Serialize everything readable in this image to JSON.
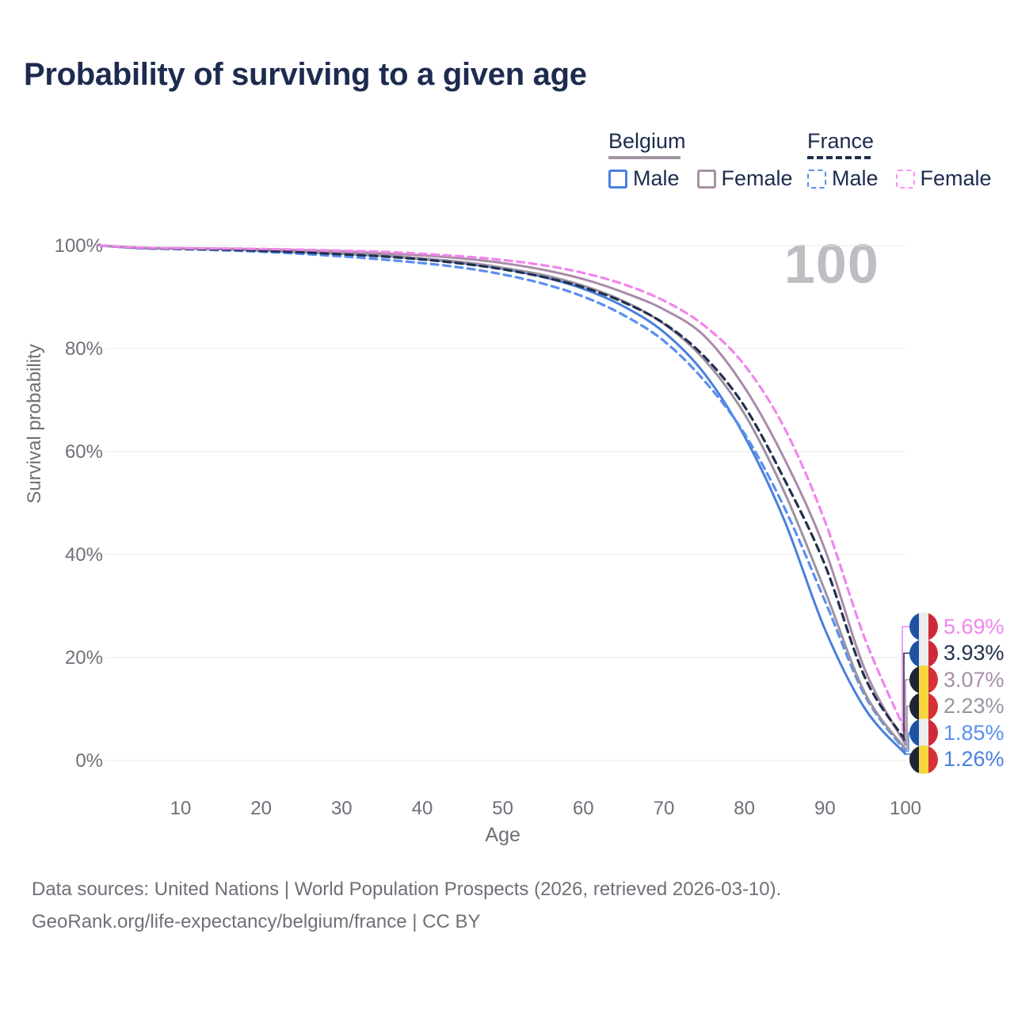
{
  "title": "Probability of surviving to a given age",
  "watermark": "100",
  "legend": {
    "groups": [
      {
        "label": "Belgium",
        "line_color": "#a396a3",
        "line_style": "solid",
        "items": [
          {
            "label": "Male",
            "color": "#4a80dd",
            "style": "solid"
          },
          {
            "label": "Female",
            "color": "#a791a6",
            "style": "solid"
          }
        ]
      },
      {
        "label": "France",
        "line_color": "#22304f",
        "line_style": "dashed",
        "items": [
          {
            "label": "Male",
            "color": "#5a8ff0",
            "style": "dashed"
          },
          {
            "label": "Female",
            "color": "#f794f3",
            "style": "dashed"
          }
        ]
      }
    ]
  },
  "chart_data": {
    "type": "line",
    "title": "Probability of surviving to a given age",
    "xlabel": "Age",
    "ylabel": "Survival probability",
    "xlim": [
      0,
      100
    ],
    "ylim": [
      0,
      100
    ],
    "grid": true,
    "legend_position": "top-right",
    "x_ticks": [
      10,
      20,
      30,
      40,
      50,
      60,
      70,
      80,
      90,
      100
    ],
    "y_ticks": [
      {
        "value": 0,
        "label": "0%"
      },
      {
        "value": 20,
        "label": "20%"
      },
      {
        "value": 40,
        "label": "40%"
      },
      {
        "value": 60,
        "label": "60%"
      },
      {
        "value": 80,
        "label": "80%"
      },
      {
        "value": 100,
        "label": "100%"
      }
    ],
    "x": [
      0,
      5,
      10,
      15,
      20,
      25,
      30,
      35,
      40,
      45,
      50,
      55,
      60,
      65,
      70,
      75,
      80,
      85,
      90,
      95,
      100
    ],
    "series": [
      {
        "name": "France Female",
        "country": "France",
        "sex": "Female",
        "color": "#f185ec",
        "dash": true,
        "flag": "france",
        "end_label": "5.69%",
        "end_value": 5.69,
        "values": [
          100,
          99.6,
          99.5,
          99.45,
          99.35,
          99.2,
          99.0,
          98.8,
          98.4,
          97.9,
          97.2,
          96.2,
          94.7,
          92.5,
          89.3,
          84.5,
          76.8,
          64.5,
          46.5,
          23.5,
          5.69
        ]
      },
      {
        "name": "France Both sexes",
        "country": "France",
        "sex": "Both",
        "color": "#22304f",
        "dash": true,
        "flag": "france",
        "end_label": "3.93%",
        "end_value": 3.93,
        "values": [
          100,
          99.55,
          99.4,
          99.25,
          99.0,
          98.7,
          98.3,
          97.9,
          97.3,
          96.5,
          95.4,
          93.9,
          91.9,
          89.0,
          84.9,
          78.5,
          68.8,
          54.5,
          38.0,
          16.0,
          3.93
        ]
      },
      {
        "name": "Belgium Female",
        "country": "Belgium",
        "sex": "Female",
        "color": "#a98ca9",
        "dash": false,
        "flag": "belgium",
        "end_label": "3.07%",
        "end_value": 3.07,
        "values": [
          100,
          99.6,
          99.5,
          99.4,
          99.3,
          99.1,
          98.9,
          98.5,
          98.1,
          97.5,
          96.6,
          95.3,
          93.5,
          90.9,
          87.6,
          82.5,
          72.5,
          58.5,
          41.0,
          17.5,
          3.07
        ]
      },
      {
        "name": "Belgium Both sexes",
        "country": "Belgium",
        "sex": "Both",
        "color": "#9c93a0",
        "dash": false,
        "flag": "belgium",
        "end_label": "2.23%",
        "end_value": 2.23,
        "values": [
          100,
          99.55,
          99.45,
          99.3,
          99.1,
          98.8,
          98.5,
          98.1,
          97.5,
          96.8,
          95.7,
          94.3,
          92.2,
          89.2,
          84.8,
          77.9,
          67.3,
          52.0,
          33.0,
          13.0,
          2.23
        ]
      },
      {
        "name": "France Male",
        "country": "France",
        "sex": "Male",
        "color": "#5a8ff0",
        "dash": true,
        "flag": "france",
        "end_label": "1.85%",
        "end_value": 1.85,
        "values": [
          100,
          99.5,
          99.3,
          99.1,
          98.8,
          98.4,
          97.9,
          97.3,
          96.6,
          95.7,
          94.4,
          92.6,
          90.1,
          86.5,
          81.5,
          73.8,
          63.5,
          49.0,
          31.0,
          12.5,
          1.85
        ]
      },
      {
        "name": "Belgium Male",
        "country": "Belgium",
        "sex": "Male",
        "color": "#4a80dd",
        "dash": false,
        "flag": "belgium",
        "end_label": "1.26%",
        "end_value": 1.26,
        "values": [
          100,
          99.5,
          99.4,
          99.3,
          99.0,
          98.7,
          98.4,
          98.0,
          97.4,
          96.6,
          95.5,
          93.9,
          91.6,
          88.2,
          83.2,
          75.2,
          63.0,
          46.5,
          25.5,
          10.0,
          1.26
        ]
      }
    ]
  },
  "flags": {
    "france": [
      "#2052a3",
      "#ececec",
      "#cf2a38"
    ],
    "belgium": [
      "#1f2437",
      "#f5d63d",
      "#d63135"
    ]
  },
  "footer": {
    "line1": "Data sources: United Nations | World Population Prospects (2026, retrieved 2026-03-10).",
    "line2": "GeoRank.org/life-expectancy/belgium/france | CC BY"
  }
}
